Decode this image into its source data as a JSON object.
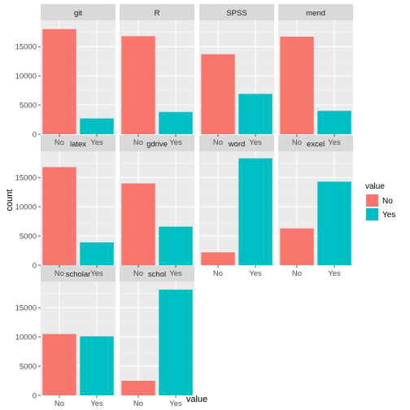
{
  "chart_data": {
    "type": "bar",
    "xlabel": "value",
    "ylabel": "count",
    "ylim": [
      0,
      19500
    ],
    "yticks": [
      0,
      5000,
      10000,
      15000
    ],
    "categories": [
      "No",
      "Yes"
    ],
    "legend": {
      "title": "value",
      "position": "right",
      "entries": [
        {
          "label": "No",
          "color": "#F8766D"
        },
        {
          "label": "Yes",
          "color": "#00BFC4"
        }
      ]
    },
    "grid": true,
    "panels": [
      {
        "name": "git",
        "values": [
          18000,
          2700
        ]
      },
      {
        "name": "R",
        "values": [
          16800,
          3800
        ]
      },
      {
        "name": "SPSS",
        "values": [
          13700,
          6900
        ]
      },
      {
        "name": "mend",
        "values": [
          16700,
          4000
        ]
      },
      {
        "name": "latex",
        "values": [
          16800,
          3900
        ]
      },
      {
        "name": "gdrive",
        "values": [
          14000,
          6600
        ]
      },
      {
        "name": "word",
        "values": [
          2200,
          18300
        ]
      },
      {
        "name": "excel",
        "values": [
          6300,
          14300
        ]
      },
      {
        "name": "scholar",
        "values": [
          10500,
          10100
        ]
      },
      {
        "name": "schol",
        "values": [
          2500,
          18100
        ]
      }
    ]
  }
}
